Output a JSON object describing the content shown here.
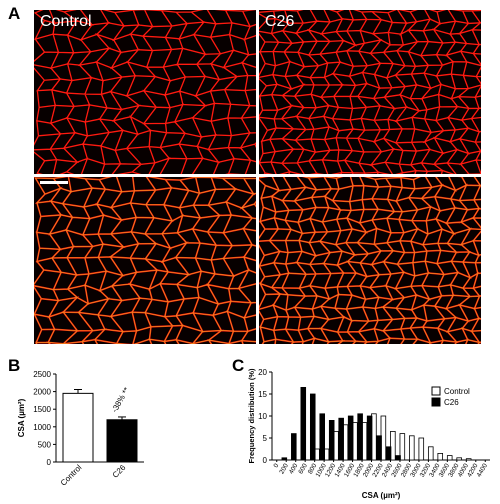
{
  "panels": {
    "a": "A",
    "b": "B",
    "c": "C"
  },
  "micrographs": {
    "control_label": "Control",
    "c26_label": "C26",
    "colors": {
      "membrane": "#ff1a10",
      "outline": "#e8a020",
      "background": "#070000"
    }
  },
  "chart_data": [
    {
      "id": "B",
      "type": "bar",
      "categories": [
        "Control",
        "C26"
      ],
      "values": [
        1950,
        1200
      ],
      "errors": [
        110,
        80
      ],
      "fills": [
        "#ffffff",
        "#000000"
      ],
      "ylabel": "CSA (µm²)",
      "ylim": [
        0,
        2500
      ],
      "yticks": [
        0,
        500,
        1000,
        1500,
        2000,
        2500
      ],
      "annotation": "-38% **"
    },
    {
      "id": "C",
      "type": "bar",
      "xlabel": "CSA (µm²)",
      "ylabel": "Frequency distribution (%)",
      "ylim": [
        0,
        20
      ],
      "yticks": [
        0,
        5,
        10,
        15,
        20
      ],
      "xticks": [
        "0",
        "200",
        "400",
        "600",
        "800",
        "1000",
        "1200",
        "1400",
        "1600",
        "1800",
        "2000",
        "2200",
        "2400",
        "2600",
        "2800",
        "3000",
        "3200",
        "3400",
        "3600",
        "3800",
        "4000",
        "4200",
        "4400"
      ],
      "legend_position": "top-right",
      "bin_starts": [
        0,
        200,
        400,
        600,
        800,
        1000,
        1200,
        1400,
        1600,
        1800,
        2000,
        2200,
        2400,
        2600,
        2800,
        3000,
        3200,
        3400,
        3600,
        3800,
        4000,
        4200,
        4400
      ],
      "series": [
        {
          "name": "Control",
          "fill": "#ffffff",
          "values": [
            0,
            0,
            0,
            0,
            2.5,
            2.5,
            6.5,
            8,
            8.5,
            8.5,
            10.5,
            10,
            6.5,
            6,
            5.5,
            5,
            3,
            1.5,
            1,
            0.5,
            0.3,
            0,
            0
          ]
        },
        {
          "name": "C26",
          "fill": "#000000",
          "values": [
            0,
            0.5,
            6,
            16.5,
            15,
            10.5,
            9,
            9.5,
            10,
            10.5,
            10,
            5.5,
            3,
            1,
            0,
            0,
            0,
            0,
            0,
            0,
            0,
            0,
            0
          ]
        }
      ]
    }
  ]
}
